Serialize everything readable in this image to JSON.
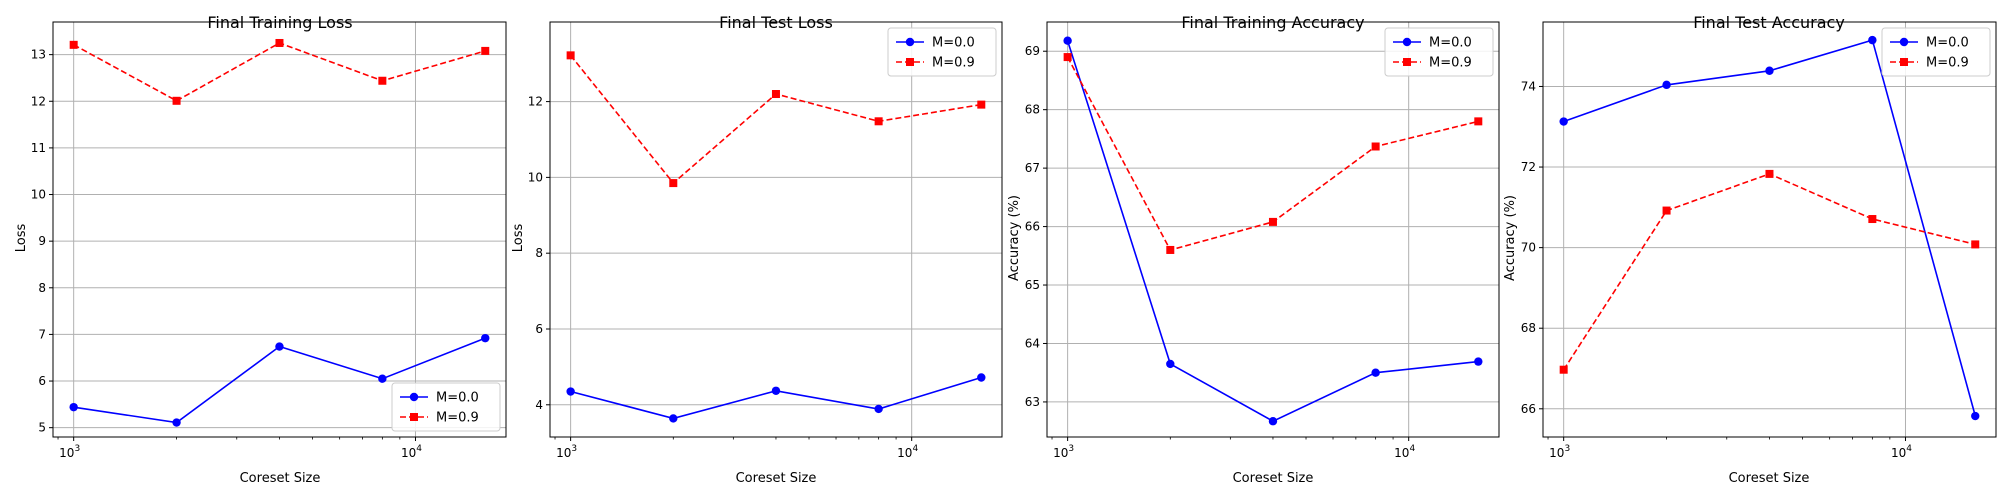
{
  "chart_data": [
    {
      "type": "line",
      "title": "Final Training Loss",
      "xlabel": "Coreset Size",
      "ylabel": "Loss",
      "x_scale": "log",
      "x": [
        1000,
        2000,
        4000,
        8000,
        16000
      ],
      "xlim": [
        870,
        18400
      ],
      "ylim": [
        4.8,
        13.7
      ],
      "yticks": [
        5,
        6,
        7,
        8,
        9,
        10,
        11,
        12,
        13
      ],
      "xtick_labels": [
        {
          "value": 1000,
          "base": "10",
          "exp": "3"
        },
        {
          "value": 10000,
          "base": "10",
          "exp": "4"
        }
      ],
      "grid": true,
      "legend_loc": "lower-right",
      "series": [
        {
          "name": "M=0.0",
          "values": [
            5.44,
            5.11,
            6.74,
            6.05,
            6.92
          ],
          "color": "#0000ff",
          "style": "solid",
          "marker": "circle"
        },
        {
          "name": "M=0.9",
          "values": [
            13.21,
            12.01,
            13.25,
            12.44,
            13.08
          ],
          "color": "#ff0000",
          "style": "dashed",
          "marker": "square"
        }
      ]
    },
    {
      "type": "line",
      "title": "Final Test Loss",
      "xlabel": "Coreset Size",
      "ylabel": "Loss",
      "x_scale": "log",
      "x": [
        1000,
        2000,
        4000,
        8000,
        16000
      ],
      "xlim": [
        870,
        18400
      ],
      "ylim": [
        3.15,
        14.1
      ],
      "yticks": [
        4,
        6,
        8,
        10,
        12
      ],
      "xtick_labels": [
        {
          "value": 1000,
          "base": "10",
          "exp": "3"
        },
        {
          "value": 10000,
          "base": "10",
          "exp": "4"
        }
      ],
      "grid": true,
      "legend_loc": "upper-right",
      "series": [
        {
          "name": "M=0.0",
          "values": [
            4.35,
            3.64,
            4.37,
            3.89,
            4.72
          ],
          "color": "#0000ff",
          "style": "solid",
          "marker": "circle"
        },
        {
          "name": "M=0.9",
          "values": [
            13.22,
            9.85,
            12.2,
            11.48,
            11.92
          ],
          "color": "#ff0000",
          "style": "dashed",
          "marker": "square"
        }
      ]
    },
    {
      "type": "line",
      "title": "Final Training Accuracy",
      "xlabel": "Coreset Size",
      "ylabel": "Accuracy (%)",
      "x_scale": "log",
      "x": [
        1000,
        2000,
        4000,
        8000,
        16000
      ],
      "xlim": [
        870,
        18400
      ],
      "ylim": [
        62.4,
        69.5
      ],
      "yticks": [
        63,
        64,
        65,
        66,
        67,
        68,
        69
      ],
      "xtick_labels": [
        {
          "value": 1000,
          "base": "10",
          "exp": "3"
        },
        {
          "value": 10000,
          "base": "10",
          "exp": "4"
        }
      ],
      "grid": true,
      "legend_loc": "upper-right",
      "series": [
        {
          "name": "M=0.0",
          "values": [
            69.18,
            63.65,
            62.67,
            63.5,
            63.69
          ],
          "color": "#0000ff",
          "style": "solid",
          "marker": "circle"
        },
        {
          "name": "M=0.9",
          "values": [
            68.9,
            65.6,
            66.08,
            67.37,
            67.8
          ],
          "color": "#ff0000",
          "style": "dashed",
          "marker": "square"
        }
      ]
    },
    {
      "type": "line",
      "title": "Final Test Accuracy",
      "xlabel": "Coreset Size",
      "ylabel": "Accuracy (%)",
      "x_scale": "log",
      "x": [
        1000,
        2000,
        4000,
        8000,
        16000
      ],
      "xlim": [
        870,
        18400
      ],
      "ylim": [
        65.3,
        75.6
      ],
      "yticks": [
        66,
        68,
        70,
        72,
        74
      ],
      "xtick_labels": [
        {
          "value": 1000,
          "base": "10",
          "exp": "3"
        },
        {
          "value": 10000,
          "base": "10",
          "exp": "4"
        }
      ],
      "grid": true,
      "legend_loc": "upper-right",
      "series": [
        {
          "name": "M=0.0",
          "values": [
            73.13,
            74.04,
            74.39,
            75.15,
            65.82
          ],
          "color": "#0000ff",
          "style": "solid",
          "marker": "circle"
        },
        {
          "name": "M=0.9",
          "values": [
            66.97,
            70.92,
            71.83,
            70.71,
            70.08
          ],
          "color": "#ff0000",
          "style": "dashed",
          "marker": "square"
        }
      ]
    }
  ]
}
